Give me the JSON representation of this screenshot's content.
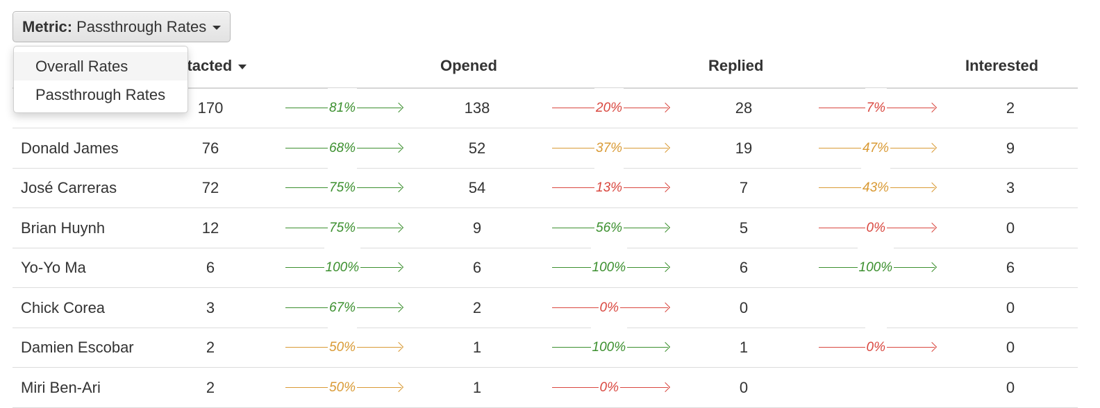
{
  "metric": {
    "label": "Metric:",
    "value": "Passthrough Rates"
  },
  "menu": {
    "items": [
      "Overall Rates",
      "Passthrough Rates"
    ]
  },
  "table": {
    "headers": {
      "contacted": "ntacted",
      "opened": "Opened",
      "replied": "Replied",
      "interested": "Interested"
    },
    "rows": [
      {
        "name": "",
        "contacted": "170",
        "opened": "138",
        "replied": "28",
        "interested": "2",
        "rates": [
          {
            "text": "81%",
            "color": "#3b8f2e"
          },
          {
            "text": "20%",
            "color": "#d9473f"
          },
          {
            "text": "7%",
            "color": "#d9473f"
          }
        ]
      },
      {
        "name": "Donald James",
        "contacted": "76",
        "opened": "52",
        "replied": "19",
        "interested": "9",
        "rates": [
          {
            "text": "68%",
            "color": "#3b8f2e"
          },
          {
            "text": "37%",
            "color": "#d99a35"
          },
          {
            "text": "47%",
            "color": "#d99a35"
          }
        ]
      },
      {
        "name": "José Carreras",
        "contacted": "72",
        "opened": "54",
        "replied": "7",
        "interested": "3",
        "rates": [
          {
            "text": "75%",
            "color": "#3b8f2e"
          },
          {
            "text": "13%",
            "color": "#d9473f"
          },
          {
            "text": "43%",
            "color": "#d99a35"
          }
        ]
      },
      {
        "name": "Brian Huynh",
        "contacted": "12",
        "opened": "9",
        "replied": "5",
        "interested": "0",
        "rates": [
          {
            "text": "75%",
            "color": "#3b8f2e"
          },
          {
            "text": "56%",
            "color": "#3b8f2e"
          },
          {
            "text": "0%",
            "color": "#d9473f"
          }
        ]
      },
      {
        "name": "Yo-Yo Ma",
        "contacted": "6",
        "opened": "6",
        "replied": "6",
        "interested": "6",
        "rates": [
          {
            "text": "100%",
            "color": "#3b8f2e"
          },
          {
            "text": "100%",
            "color": "#3b8f2e"
          },
          {
            "text": "100%",
            "color": "#3b8f2e"
          }
        ]
      },
      {
        "name": "Chick Corea",
        "contacted": "3",
        "opened": "2",
        "replied": "0",
        "interested": "0",
        "rates": [
          {
            "text": "67%",
            "color": "#3b8f2e"
          },
          {
            "text": "0%",
            "color": "#d9473f"
          },
          null
        ]
      },
      {
        "name": "Damien Escobar",
        "contacted": "2",
        "opened": "1",
        "replied": "1",
        "interested": "0",
        "rates": [
          {
            "text": "50%",
            "color": "#d99a35"
          },
          {
            "text": "100%",
            "color": "#3b8f2e"
          },
          {
            "text": "0%",
            "color": "#d9473f"
          }
        ]
      },
      {
        "name": "Miri Ben-Ari",
        "contacted": "2",
        "opened": "1",
        "replied": "0",
        "interested": "0",
        "rates": [
          {
            "text": "50%",
            "color": "#d99a35"
          },
          {
            "text": "0%",
            "color": "#d9473f"
          },
          null
        ]
      }
    ]
  }
}
